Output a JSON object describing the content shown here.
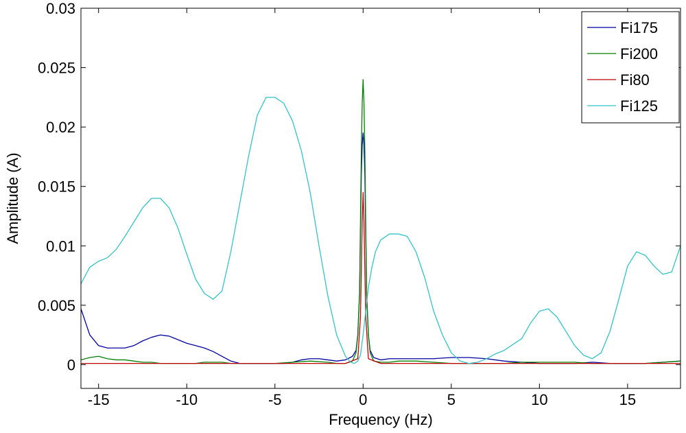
{
  "chart_data": {
    "type": "line",
    "title": "",
    "xlabel": "Frequency (Hz)",
    "ylabel": "Amplitude (A)",
    "xlim": [
      -16,
      18
    ],
    "ylim": [
      -0.002,
      0.03
    ],
    "xticks": [
      -15,
      -10,
      -5,
      0,
      5,
      10,
      15
    ],
    "xtick_labels": [
      "-15",
      "-10",
      "-5",
      "0",
      "5",
      "10",
      "15"
    ],
    "yticks": [
      0,
      0.005,
      0.01,
      0.015,
      0.02,
      0.025,
      0.03
    ],
    "ytick_labels": [
      "0",
      "0.005",
      "0.01",
      "0.015",
      "0.02",
      "0.025",
      "0.03"
    ],
    "grid": false,
    "legend_position": "top-right",
    "series": [
      {
        "name": "Fi175",
        "color": "#0000a0",
        "x": [
          -16,
          -15.5,
          -15,
          -14.5,
          -14,
          -13.5,
          -13,
          -12.5,
          -12,
          -11.5,
          -11,
          -10.5,
          -10,
          -9.5,
          -9,
          -8.5,
          -8,
          -7.5,
          -7,
          -6.5,
          -6,
          -5.5,
          -5,
          -4.5,
          -4,
          -3.5,
          -3,
          -2.5,
          -2,
          -1.5,
          -1,
          -0.6,
          -0.4,
          -0.3,
          -0.2,
          -0.15,
          -0.1,
          -0.05,
          0,
          0.05,
          0.1,
          0.15,
          0.2,
          0.3,
          0.4,
          0.6,
          1,
          1.5,
          2,
          3,
          4,
          5,
          6,
          7,
          8,
          9,
          10,
          11,
          12,
          13,
          14,
          15,
          16,
          17,
          18
        ],
        "y": [
          0.0047,
          0.0025,
          0.0016,
          0.0014,
          0.0014,
          0.0014,
          0.0016,
          0.002,
          0.0023,
          0.0025,
          0.0024,
          0.0021,
          0.0018,
          0.0016,
          0.0014,
          0.0011,
          0.0007,
          0.0003,
          0.0001,
          0.0001,
          0.0001,
          0.0001,
          0.0001,
          0.0001,
          0.0002,
          0.0004,
          0.0005,
          0.0005,
          0.0004,
          0.0003,
          0.0004,
          0.0007,
          0.0012,
          0.0025,
          0.006,
          0.011,
          0.016,
          0.0185,
          0.0195,
          0.0185,
          0.016,
          0.011,
          0.006,
          0.0025,
          0.0012,
          0.0006,
          0.0004,
          0.0005,
          0.0005,
          0.0005,
          0.0005,
          0.0006,
          0.0006,
          0.0005,
          0.0003,
          0.0002,
          0.0001,
          0.0001,
          0.0001,
          0.0002,
          0.0001,
          0.0001,
          0.0001,
          0.0002,
          0.0003
        ]
      },
      {
        "name": "Fi200",
        "color": "#008000",
        "x": [
          -16,
          -15.5,
          -15,
          -14.5,
          -14,
          -13.5,
          -13,
          -12.5,
          -12,
          -11.5,
          -11,
          -10.5,
          -10,
          -9.5,
          -9,
          -8.5,
          -8,
          -7.5,
          -7,
          -6,
          -5,
          -4,
          -3,
          -2,
          -1.5,
          -1,
          -0.6,
          -0.4,
          -0.3,
          -0.2,
          -0.15,
          -0.1,
          -0.05,
          0,
          0.05,
          0.1,
          0.15,
          0.2,
          0.3,
          0.4,
          0.6,
          1,
          1.5,
          2,
          3,
          4,
          5,
          6,
          7,
          8,
          9,
          10,
          11,
          12,
          13,
          14,
          15,
          16,
          17,
          18
        ],
        "y": [
          0.0004,
          0.0006,
          0.0007,
          0.0005,
          0.0004,
          0.0004,
          0.0003,
          0.0002,
          0.0002,
          0.0001,
          0.0001,
          0.0001,
          0.0001,
          0.0001,
          0.0002,
          0.0002,
          0.0002,
          0.0001,
          0.0001,
          0.0001,
          0.0001,
          0.0002,
          0.0003,
          0.0002,
          0.0001,
          0.0001,
          0.0003,
          0.001,
          0.0025,
          0.006,
          0.012,
          0.018,
          0.022,
          0.024,
          0.022,
          0.018,
          0.012,
          0.006,
          0.0025,
          0.001,
          0.0003,
          0.0002,
          0.0002,
          0.0003,
          0.0003,
          0.0002,
          0.0001,
          0.0001,
          0.0001,
          0.0001,
          0.0002,
          0.0002,
          0.0002,
          0.0002,
          0.0001,
          0.0001,
          0.0001,
          0.0001,
          0.0002,
          0.0003
        ]
      },
      {
        "name": "Fi80",
        "color": "#c00000",
        "x": [
          -16,
          -10,
          -5,
          -1,
          -0.3,
          -0.15,
          -0.05,
          0,
          0.05,
          0.15,
          0.3,
          1,
          5,
          10,
          15,
          18
        ],
        "y": [
          0.0001,
          0.0001,
          0.0001,
          0.0001,
          0.0005,
          0.004,
          0.012,
          0.0145,
          0.012,
          0.004,
          0.0005,
          0.0001,
          0.0001,
          0.0001,
          0.0001,
          0.0001
        ]
      },
      {
        "name": "Fi125",
        "color": "#33c2c8",
        "x": [
          -16,
          -15.5,
          -15,
          -14.5,
          -14,
          -13.5,
          -13,
          -12.5,
          -12,
          -11.5,
          -11,
          -10.5,
          -10,
          -9.5,
          -9,
          -8.5,
          -8,
          -7.5,
          -7,
          -6.5,
          -6,
          -5.5,
          -5,
          -4.5,
          -4,
          -3.5,
          -3,
          -2.5,
          -2,
          -1.5,
          -1,
          -0.7,
          -0.5,
          -0.3,
          -0.15,
          0,
          0.15,
          0.3,
          0.5,
          0.7,
          1,
          1.5,
          2,
          2.5,
          3,
          3.5,
          4,
          4.5,
          5,
          5.5,
          6,
          6.5,
          7,
          7.5,
          8,
          8.5,
          9,
          9.5,
          10,
          10.5,
          11,
          11.5,
          12,
          12.5,
          13,
          13.5,
          14,
          14.5,
          15,
          15.5,
          16,
          16.5,
          17,
          17.5,
          18
        ],
        "y": [
          0.0068,
          0.0082,
          0.0087,
          0.009,
          0.0097,
          0.0108,
          0.012,
          0.0132,
          0.014,
          0.014,
          0.0132,
          0.0115,
          0.0093,
          0.0072,
          0.006,
          0.0055,
          0.0062,
          0.0095,
          0.0135,
          0.0175,
          0.021,
          0.0225,
          0.0225,
          0.022,
          0.0205,
          0.018,
          0.0145,
          0.01,
          0.0058,
          0.0025,
          0.0007,
          0.0002,
          0.0001,
          0.0003,
          0.0008,
          0.0025,
          0.0045,
          0.0065,
          0.0082,
          0.0095,
          0.0105,
          0.011,
          0.011,
          0.0108,
          0.0095,
          0.0073,
          0.0045,
          0.0025,
          0.001,
          0.0003,
          0.0001,
          0.0002,
          0.0005,
          0.0009,
          0.0012,
          0.0017,
          0.0022,
          0.0035,
          0.0045,
          0.0047,
          0.004,
          0.0028,
          0.0016,
          0.0008,
          0.0005,
          0.001,
          0.0028,
          0.0055,
          0.0083,
          0.0095,
          0.0092,
          0.0083,
          0.0076,
          0.0078,
          0.01
        ]
      }
    ]
  }
}
